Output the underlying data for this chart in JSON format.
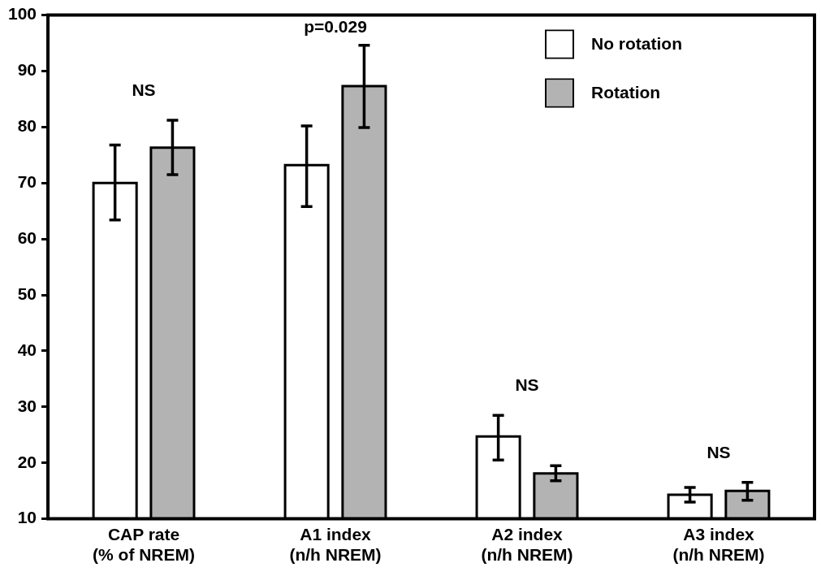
{
  "chart_data": {
    "type": "bar",
    "categories": [
      "CAP rate\n(% of NREM)",
      "A1 index\n(n/h NREM)",
      "A2 index\n(n/h NREM)",
      "A3 index\n(n/h NREM)"
    ],
    "series": [
      {
        "name": "No rotation",
        "color": "#ffffff",
        "values": [
          70,
          73.2,
          24.7,
          14.3
        ],
        "errors": [
          [
            63.4,
            76.8
          ],
          [
            65.8,
            80.2
          ],
          [
            20.5,
            28.5
          ],
          [
            13.0,
            15.6
          ]
        ]
      },
      {
        "name": "Rotation",
        "color": "#b3b3b3",
        "values": [
          76.3,
          87.3,
          18.1,
          15.0
        ],
        "errors": [
          [
            71.5,
            81.2
          ],
          [
            79.9,
            94.6
          ],
          [
            16.8,
            19.5
          ],
          [
            13.3,
            16.5
          ]
        ]
      }
    ],
    "ylim": [
      10,
      100
    ],
    "yticks": [
      10,
      20,
      30,
      40,
      50,
      60,
      70,
      80,
      90,
      100
    ],
    "grid": false,
    "legend": "top right",
    "annotations": [
      "NS",
      "p=0.029",
      "NS",
      "NS"
    ]
  }
}
